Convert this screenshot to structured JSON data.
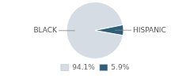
{
  "chart_data": {
    "type": "pie",
    "categories": [
      "BLACK",
      "HISPANIC"
    ],
    "values": [
      94.1,
      5.9
    ],
    "value_labels": [
      "94.1%",
      "5.9%"
    ],
    "colors": [
      "#d6dce4",
      "#2e5f7a"
    ],
    "legend": "bottom"
  }
}
